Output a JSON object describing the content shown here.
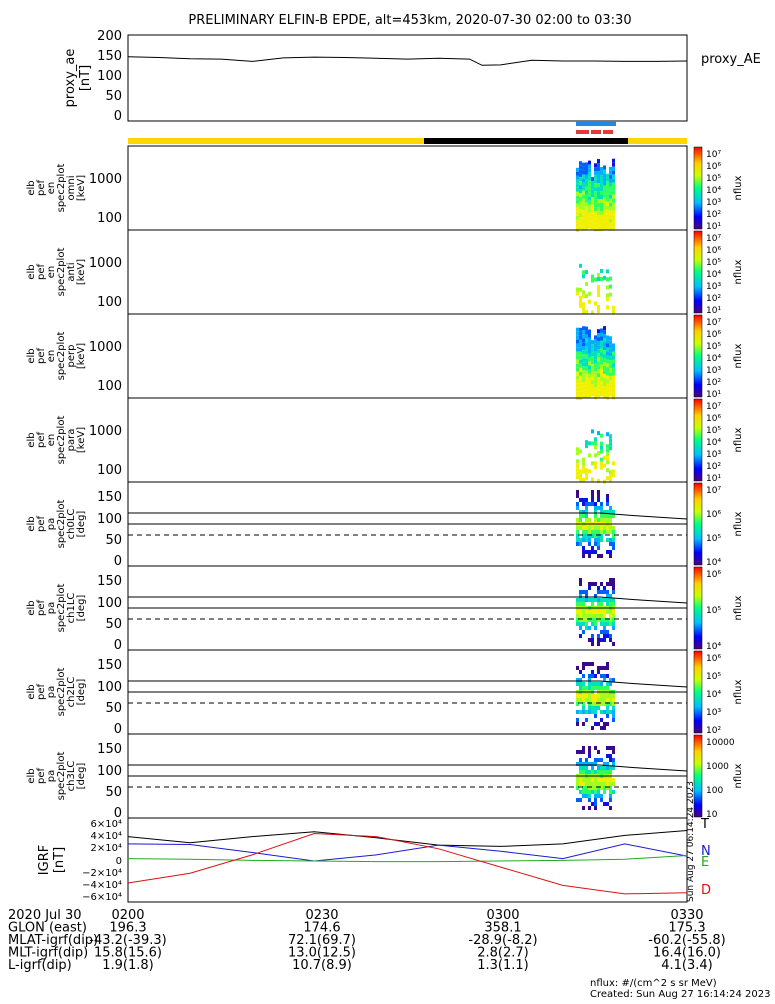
{
  "title": "PRELIMINARY ELFIN-B EPDE, alt=453km, 2020-07-30 02:00 to 03:30",
  "ae_panel": {
    "ylabel_lines": [
      "proxy_ae",
      "[nT]"
    ],
    "legend": "proxy_AE",
    "ylim": [
      0,
      200
    ],
    "ticks": [
      "200",
      "150",
      "100",
      "50",
      "0"
    ]
  },
  "spec_panels": [
    {
      "ylabel_lines": [
        "elb",
        "pef",
        "en",
        "spec2plot",
        "omni",
        "[keV]"
      ],
      "ticks": [
        "1000",
        "100"
      ],
      "cbar_ticks": [
        "10⁷",
        "10⁶",
        "10⁵",
        "10⁴",
        "10³",
        "10²",
        "10¹"
      ],
      "cbar_label": "nflux"
    },
    {
      "ylabel_lines": [
        "elb",
        "pef",
        "en",
        "spec2plot",
        "anti",
        "[keV]"
      ],
      "ticks": [
        "1000",
        "100"
      ],
      "cbar_ticks": [
        "10⁷",
        "10⁶",
        "10⁵",
        "10⁴",
        "10³",
        "10²",
        "10¹"
      ],
      "cbar_label": "nflux"
    },
    {
      "ylabel_lines": [
        "elb",
        "pef",
        "en",
        "spec2plot",
        "perp",
        "[keV]"
      ],
      "ticks": [
        "1000",
        "100"
      ],
      "cbar_ticks": [
        "10⁷",
        "10⁶",
        "10⁵",
        "10⁴",
        "10³",
        "10²",
        "10¹"
      ],
      "cbar_label": "nflux"
    },
    {
      "ylabel_lines": [
        "elb",
        "pef",
        "en",
        "spec2plot",
        "para",
        "[keV]"
      ],
      "ticks": [
        "1000",
        "100"
      ],
      "cbar_ticks": [
        "10⁷",
        "10⁶",
        "10⁵",
        "10⁴",
        "10³",
        "10²",
        "10¹"
      ],
      "cbar_label": "nflux"
    }
  ],
  "pa_panels": [
    {
      "ylabel_lines": [
        "elb",
        "pef",
        "pa",
        "spec2plot",
        "ch0LC",
        "[deg]"
      ],
      "ticks": [
        "150",
        "100",
        "50",
        "0"
      ],
      "cbar_ticks": [
        "10⁷",
        "10⁶",
        "10⁵",
        "10⁴"
      ],
      "cbar_label": "nflux"
    },
    {
      "ylabel_lines": [
        "elb",
        "pef",
        "pa",
        "spec2plot",
        "ch1LC",
        "[deg]"
      ],
      "ticks": [
        "150",
        "100",
        "50",
        "0"
      ],
      "cbar_ticks": [
        "10⁶",
        "10⁵",
        "10⁴"
      ],
      "cbar_label": "nflux"
    },
    {
      "ylabel_lines": [
        "elb",
        "pef",
        "pa",
        "spec2plot",
        "ch2LC",
        "[deg]"
      ],
      "ticks": [
        "150",
        "100",
        "50",
        "0"
      ],
      "cbar_ticks": [
        "10⁶",
        "10⁵",
        "10⁴",
        "10³",
        "10²"
      ],
      "cbar_label": "nflux"
    },
    {
      "ylabel_lines": [
        "elb",
        "pef",
        "pa",
        "spec2plot",
        "ch3LC",
        "[deg]"
      ],
      "ticks": [
        "150",
        "100",
        "50",
        "0"
      ],
      "cbar_ticks": [
        "10000",
        "1000",
        "100",
        "10"
      ],
      "cbar_label": "nflux"
    }
  ],
  "igrf_panel": {
    "ylabel_lines": [
      "IGRF",
      "[nT]"
    ],
    "ticks": [
      "6×10⁴",
      "4×10⁴",
      "2×10⁴",
      "0",
      "−2×10⁴",
      "−4×10⁴",
      "−6×10⁴"
    ],
    "legend": [
      {
        "label": "T",
        "color": "#000000"
      },
      {
        "label": "N",
        "color": "#1a1ad0"
      },
      {
        "label": "E",
        "color": "#22aa22"
      },
      {
        "label": "D",
        "color": "#dd1111"
      }
    ],
    "side_text": "Sun Aug 27 06:14:24 2023"
  },
  "chart_data": {
    "type": "line",
    "x_range": [
      "02:00",
      "03:30"
    ],
    "ae": {
      "x_min": [
        0,
        5,
        10,
        15,
        20,
        25,
        30,
        35,
        40,
        45,
        50,
        55,
        57,
        60,
        65,
        70,
        75,
        80,
        85,
        90
      ],
      "values": [
        152,
        150,
        147,
        146,
        140,
        149,
        151,
        150,
        148,
        146,
        148,
        146,
        130,
        131,
        143,
        141,
        141,
        140,
        140,
        141
      ]
    },
    "igrf": {
      "x_min": [
        0,
        10,
        20,
        30,
        40,
        50,
        60,
        70,
        80,
        90
      ],
      "series": [
        {
          "name": "T",
          "values": [
            40000,
            30000,
            40000,
            48000,
            38000,
            26000,
            24000,
            28000,
            42000,
            50000
          ]
        },
        {
          "name": "N",
          "values": [
            28000,
            27000,
            14000,
            0,
            10000,
            26000,
            16000,
            4000,
            28000,
            8000
          ]
        },
        {
          "name": "E",
          "values": [
            4000,
            3000,
            1000,
            0,
            -1000,
            -1000,
            0,
            1000,
            3000,
            9000
          ]
        },
        {
          "name": "D",
          "values": [
            -36000,
            -20000,
            10000,
            45000,
            40000,
            20000,
            -10000,
            -40000,
            -54000,
            -52000
          ]
        }
      ]
    }
  },
  "footer": {
    "rows": [
      {
        "label": "2020 Jul 30",
        "vals": [
          "0200",
          "0230",
          "0300",
          "0330"
        ]
      },
      {
        "label": "GLON (east)",
        "vals": [
          "196.3",
          "174.6",
          "358.1",
          "175.3"
        ]
      },
      {
        "label": "MLAT-igrf(dip)",
        "vals": [
          "-43.2(-39.3)",
          "72.1(69.7)",
          "-28.9(-8.2)",
          "-60.2(-55.8)"
        ]
      },
      {
        "label": "MLT-igrf(dip)",
        "vals": [
          "15.8(15.6)",
          "13.0(12.5)",
          "2.8(2.7)",
          "16.4(16.0)"
        ]
      },
      {
        "label": "L-igrf(dip)",
        "vals": [
          "1.9(1.8)",
          "10.7(8.9)",
          "1.3(1.1)",
          "4.1(3.4)"
        ]
      }
    ],
    "units": "nflux: #/(cm^2 s sr MeV)",
    "created": "Created: Sun Aug 27 16:14:24 2023"
  }
}
